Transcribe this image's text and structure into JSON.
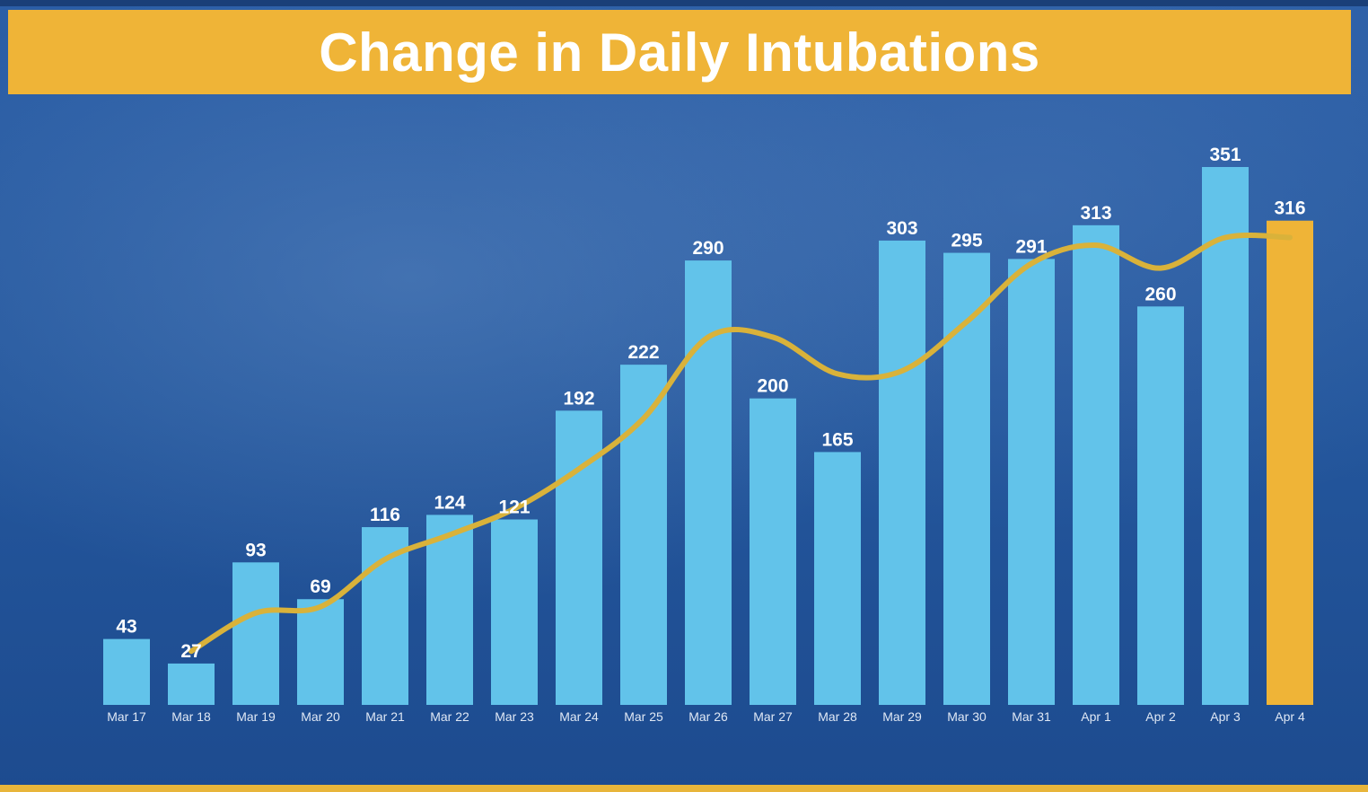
{
  "title": "Change in Daily Intubations",
  "colors": {
    "banner": "#efb437",
    "bar": "#62c3ea",
    "highlight_bar": "#efb437",
    "trend_line": "#d9b23a",
    "background": "#24579d"
  },
  "chart_data": {
    "type": "bar",
    "title": "Change in Daily Intubations",
    "xlabel": "",
    "ylabel": "",
    "ylim": [
      0,
      360
    ],
    "grid": false,
    "legend": "none",
    "categories": [
      "Mar 17",
      "Mar 18",
      "Mar 19",
      "Mar 20",
      "Mar 21",
      "Mar 22",
      "Mar 23",
      "Mar 24",
      "Mar 25",
      "Mar 26",
      "Mar 27",
      "Mar 28",
      "Mar 29",
      "Mar 30",
      "Mar 31",
      "Apr 1",
      "Apr 2",
      "Apr 3",
      "Apr 4"
    ],
    "values": [
      43,
      27,
      93,
      69,
      116,
      124,
      121,
      192,
      222,
      290,
      200,
      165,
      303,
      295,
      291,
      313,
      260,
      351,
      316
    ],
    "highlighted_category": "Apr 4",
    "trend_line": {
      "x": [
        "Mar 18",
        "Mar 19",
        "Mar 20",
        "Mar 21",
        "Mar 22",
        "Mar 23",
        "Mar 24",
        "Mar 25",
        "Mar 26",
        "Mar 27",
        "Mar 28",
        "Mar 29",
        "Mar 30",
        "Mar 31",
        "Apr 1",
        "Apr 2",
        "Apr 3",
        "Apr 4"
      ],
      "values": [
        35,
        60,
        64,
        95,
        111,
        128,
        154,
        187,
        240,
        240,
        216,
        218,
        250,
        288,
        300,
        285,
        305,
        305
      ]
    }
  }
}
